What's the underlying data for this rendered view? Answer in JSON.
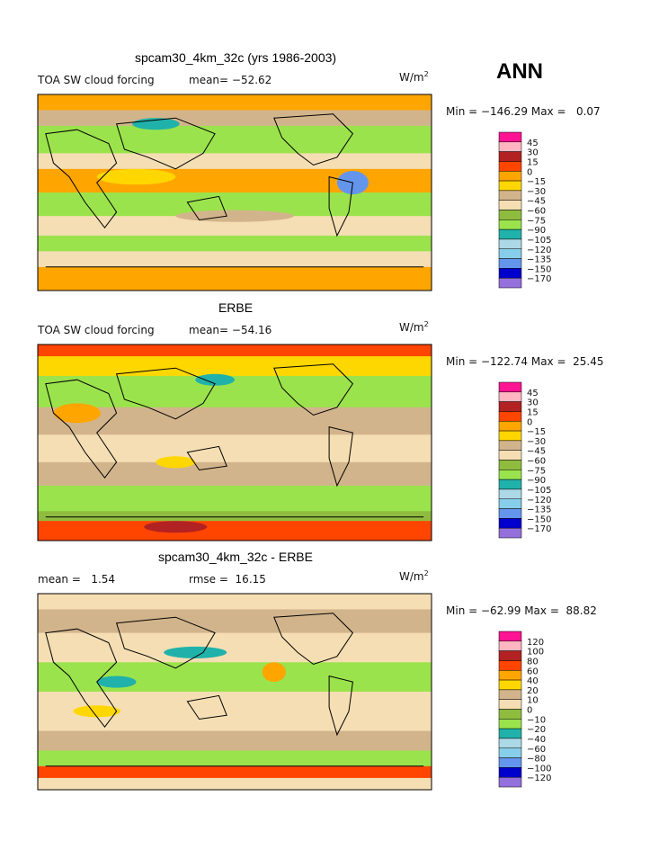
{
  "season": "ANN",
  "panels": [
    {
      "title": "spcam30_4km_32c (yrs 1986-2003)",
      "field": "TOA SW cloud forcing",
      "stats": [
        "mean= −52.62"
      ],
      "units": "W/m",
      "units_exponent": "2",
      "min_max": "Min = −146.29 Max =   0.07",
      "colorbar": {
        "labels": [
          "45",
          "30",
          "15",
          "0",
          "−15",
          "−30",
          "−45",
          "−60",
          "−75",
          "−90",
          "−105",
          "−120",
          "−135",
          "−150",
          "−170"
        ],
        "colors": [
          "#ff1493",
          "#ffb6c1",
          "#b22222",
          "#ff4500",
          "#ffa500",
          "#ffd700",
          "#d2b48c",
          "#f5deb3",
          "#8fbc3f",
          "#9be34c",
          "#20b2aa",
          "#add8e6",
          "#87ceeb",
          "#6495ed",
          "#0000cd",
          "#9370db"
        ]
      }
    },
    {
      "title": "ERBE",
      "field": "TOA SW cloud forcing",
      "stats": [
        "mean= −54.16"
      ],
      "units": "W/m",
      "units_exponent": "2",
      "min_max": "Min = −122.74 Max =  25.45",
      "colorbar": {
        "labels": [
          "45",
          "30",
          "15",
          "0",
          "−15",
          "−30",
          "−45",
          "−60",
          "−75",
          "−90",
          "−105",
          "−120",
          "−135",
          "−150",
          "−170"
        ],
        "colors": [
          "#ff1493",
          "#ffb6c1",
          "#b22222",
          "#ff4500",
          "#ffa500",
          "#ffd700",
          "#d2b48c",
          "#f5deb3",
          "#8fbc3f",
          "#9be34c",
          "#20b2aa",
          "#add8e6",
          "#87ceeb",
          "#6495ed",
          "#0000cd",
          "#9370db"
        ]
      }
    },
    {
      "title": "spcam30_4km_32c - ERBE",
      "field": "",
      "stats": [
        "mean =   1.54",
        "rmse =  16.15"
      ],
      "units": "W/m",
      "units_exponent": "2",
      "min_max": "Min = −62.99 Max =  88.82",
      "colorbar": {
        "labels": [
          "120",
          "100",
          "80",
          "60",
          "40",
          "20",
          "10",
          "0",
          "−10",
          "−20",
          "−40",
          "−60",
          "−80",
          "−100",
          "−120"
        ],
        "colors": [
          "#ff1493",
          "#ffb6c1",
          "#b22222",
          "#ff4500",
          "#ffa500",
          "#ffd700",
          "#d2b48c",
          "#f5deb3",
          "#8fbc3f",
          "#9be34c",
          "#20b2aa",
          "#add8e6",
          "#87ceeb",
          "#6495ed",
          "#0000cd",
          "#9370db"
        ]
      }
    }
  ]
}
